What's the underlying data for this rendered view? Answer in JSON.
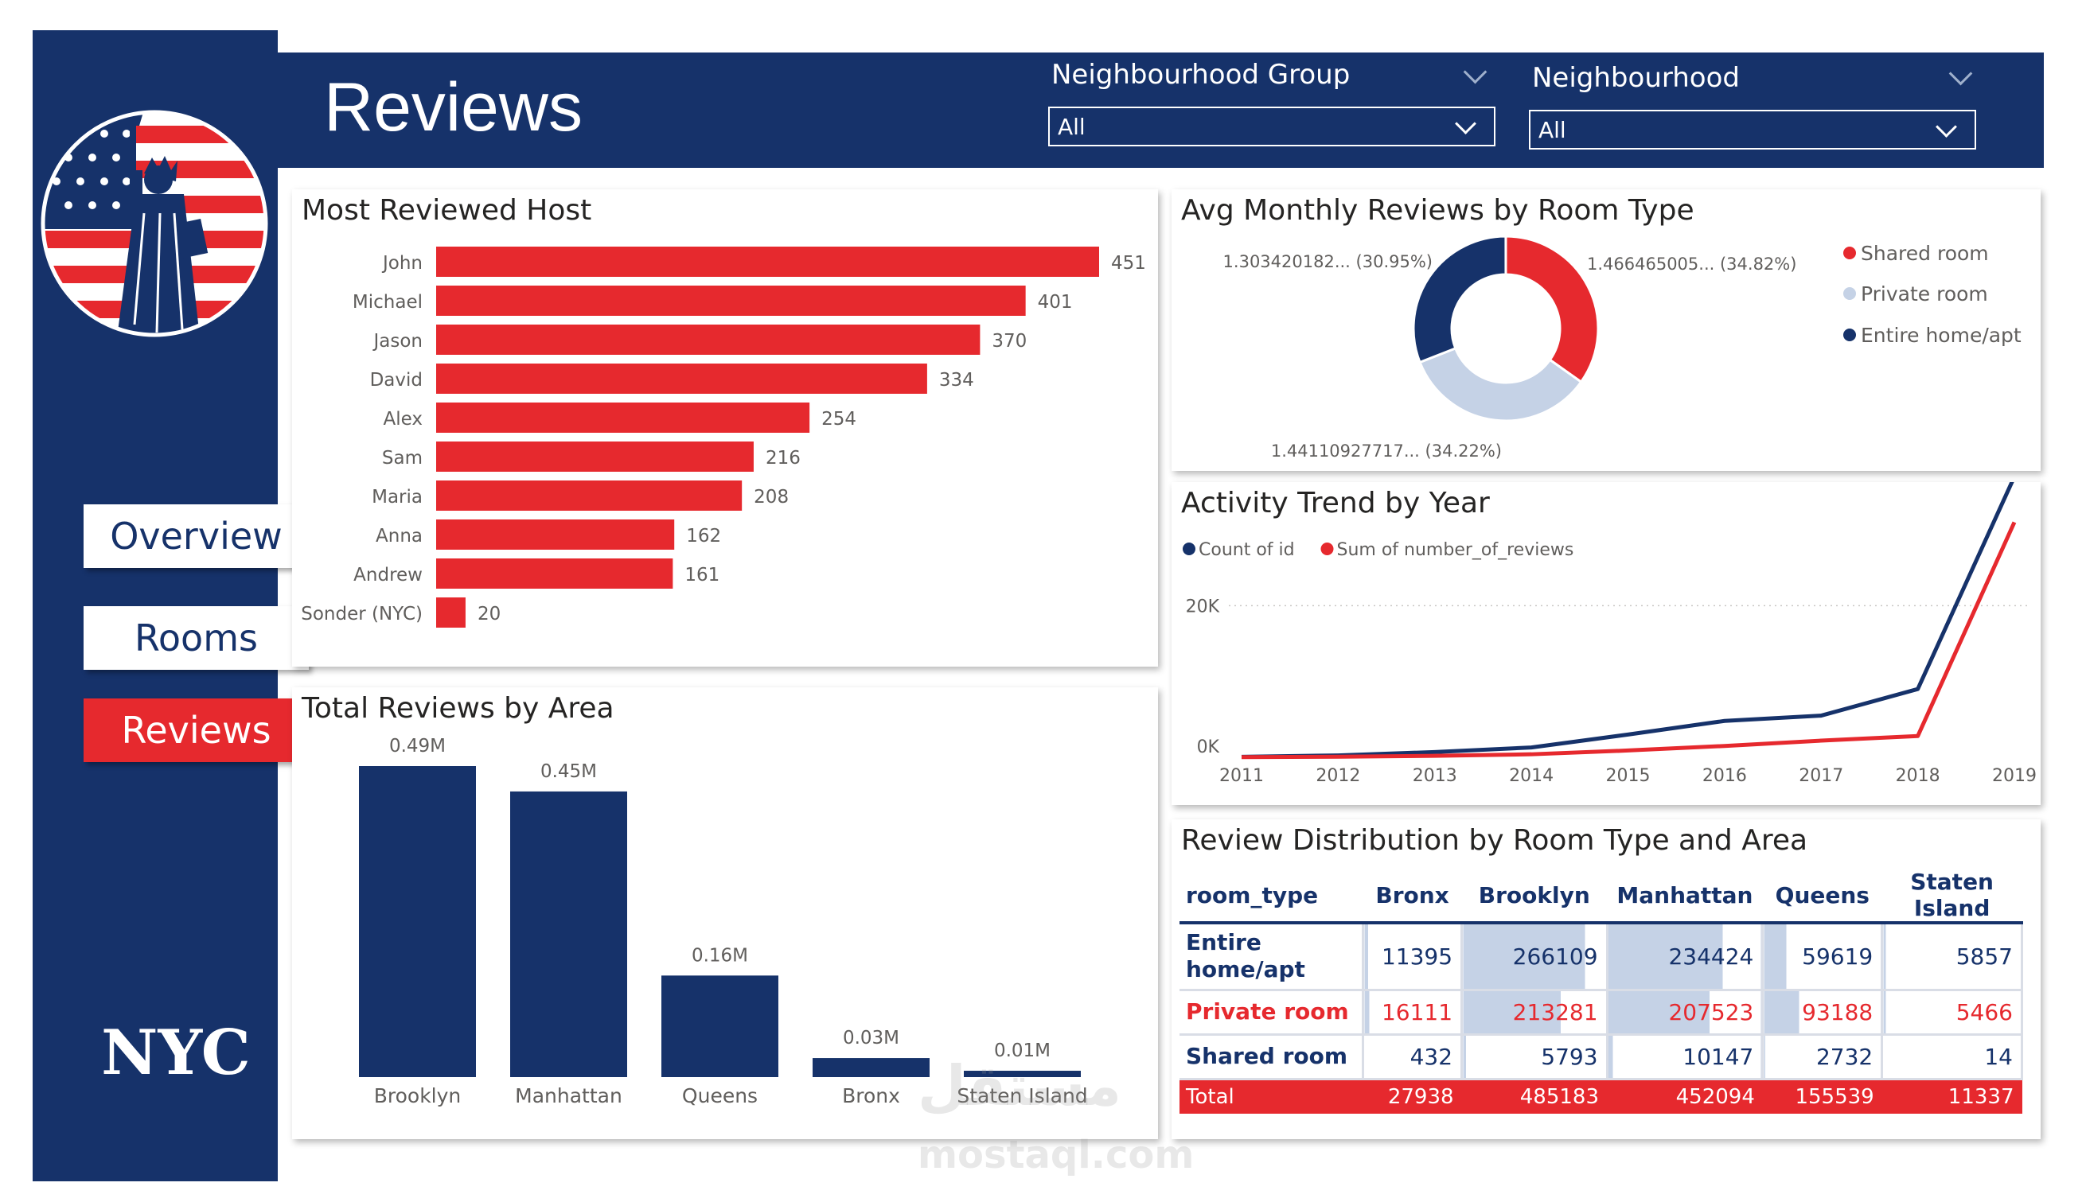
{
  "sidebar": {
    "nav": [
      {
        "label": "Overview"
      },
      {
        "label": "Rooms"
      },
      {
        "label": "Reviews",
        "active": true
      }
    ],
    "brand": "NYC"
  },
  "header": {
    "title": "Reviews",
    "slicers": [
      {
        "label": "Neighbourhood Group",
        "value": "All"
      },
      {
        "label": "Neighbourhood",
        "value": "All"
      }
    ]
  },
  "colors": {
    "navy": "#16326a",
    "red": "#e6292e",
    "light_blue": "#c5d2e6"
  },
  "watermark": {
    "text": "mostaql.com"
  },
  "charts": {
    "most_reviewed_host": {
      "title": "Most Reviewed Host",
      "chart_data": {
        "type": "bar",
        "orientation": "horizontal",
        "categories": [
          "John",
          "Michael",
          "Jason",
          "David",
          "Alex",
          "Sam",
          "Maria",
          "Anna",
          "Andrew",
          "Sonder (NYC)"
        ],
        "values": [
          451,
          401,
          370,
          334,
          254,
          216,
          208,
          162,
          161,
          20
        ],
        "color": "#e6292e"
      }
    },
    "avg_monthly_reviews": {
      "title": "Avg Monthly Reviews by Room Type",
      "chart_data": {
        "type": "pie",
        "donut": true,
        "slices": [
          {
            "name": "Shared room",
            "label": "1.466465005... (34.82%)",
            "percent": 34.82,
            "color": "#e6292e"
          },
          {
            "name": "Private room",
            "label": "1.44110927717... (34.22%)",
            "percent": 34.22,
            "color": "#c5d2e6"
          },
          {
            "name": "Entire home/apt",
            "label": "1.303420182... (30.95%)",
            "percent": 30.95,
            "color": "#16326a"
          }
        ],
        "legend": "right"
      }
    },
    "activity_trend": {
      "title": "Activity Trend by Year",
      "chart_data": {
        "type": "line",
        "x": [
          "2011",
          "2012",
          "2013",
          "2014",
          "2015",
          "2016",
          "2017",
          "2018",
          "2019"
        ],
        "ylim": [
          0,
          30000
        ],
        "yticks": [
          "0K",
          "20K"
        ],
        "series": [
          {
            "name": "Count of id",
            "color": "#16326a",
            "values": [
              70,
              250,
              700,
              1300,
              3000,
              4800,
              5500,
              9000,
              37000
            ]
          },
          {
            "name": "Sum of number_of_reviews",
            "color": "#e6292e",
            "values": [
              30,
              80,
              200,
              400,
              900,
              1500,
              2200,
              2800,
              31000
            ]
          }
        ],
        "legend": "top-left"
      }
    },
    "total_reviews_by_area": {
      "title": "Total Reviews by Area",
      "chart_data": {
        "type": "bar",
        "categories": [
          "Brooklyn",
          "Manhattan",
          "Queens",
          "Bronx",
          "Staten Island"
        ],
        "values": [
          0.49,
          0.45,
          0.16,
          0.03,
          0.01
        ],
        "labels": [
          "0.49M",
          "0.45M",
          "0.16M",
          "0.03M",
          "0.01M"
        ],
        "unit": "M",
        "color": "#16326a"
      }
    }
  },
  "matrix": {
    "title": "Review Distribution by Room Type and Area",
    "columns": [
      "room_type",
      "Bronx",
      "Brooklyn",
      "Manhattan",
      "Queens",
      "Staten Island"
    ],
    "rows": [
      {
        "label": "Entire home/apt",
        "values": [
          "11395",
          "266109",
          "234424",
          "59619",
          "5857"
        ]
      },
      {
        "label": "Private room",
        "values": [
          "16111",
          "213281",
          "207523",
          "93188",
          "5466"
        ]
      },
      {
        "label": "Shared room",
        "values": [
          "432",
          "5793",
          "10147",
          "2732",
          "14"
        ]
      }
    ],
    "total": {
      "label": "Total",
      "values": [
        "27938",
        "485183",
        "452094",
        "155539",
        "11337"
      ]
    }
  }
}
